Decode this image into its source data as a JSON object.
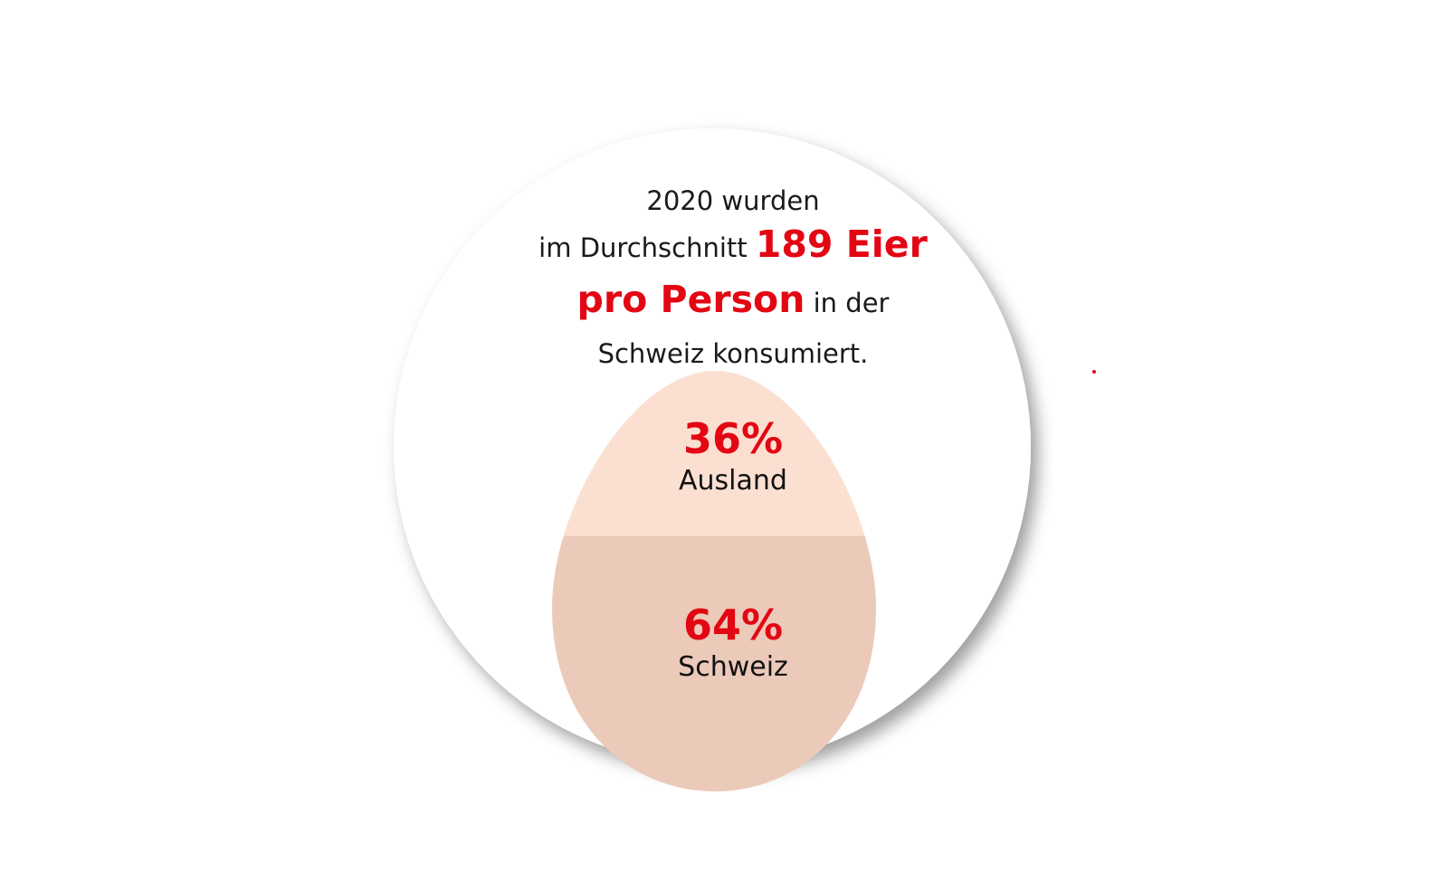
{
  "headline": {
    "line1": "2020 wurden",
    "line2_text": "im Durchschnitt ",
    "line2_highlight": "189 Eier",
    "line3_highlight": "pro Person",
    "line3_text": " in der",
    "line4": "Schweiz konsumiert."
  },
  "colors": {
    "accent": "#e30613",
    "text": "#1a1a1a",
    "circle": "#ffffff",
    "egg_top": "#fbe0d2",
    "egg_bottom": "#eccab9"
  },
  "chart_data": {
    "type": "egg-split",
    "segments": [
      {
        "label": "Ausland",
        "value": 36,
        "display": "36%"
      },
      {
        "label": "Schweiz",
        "value": 64,
        "display": "64%"
      }
    ]
  }
}
